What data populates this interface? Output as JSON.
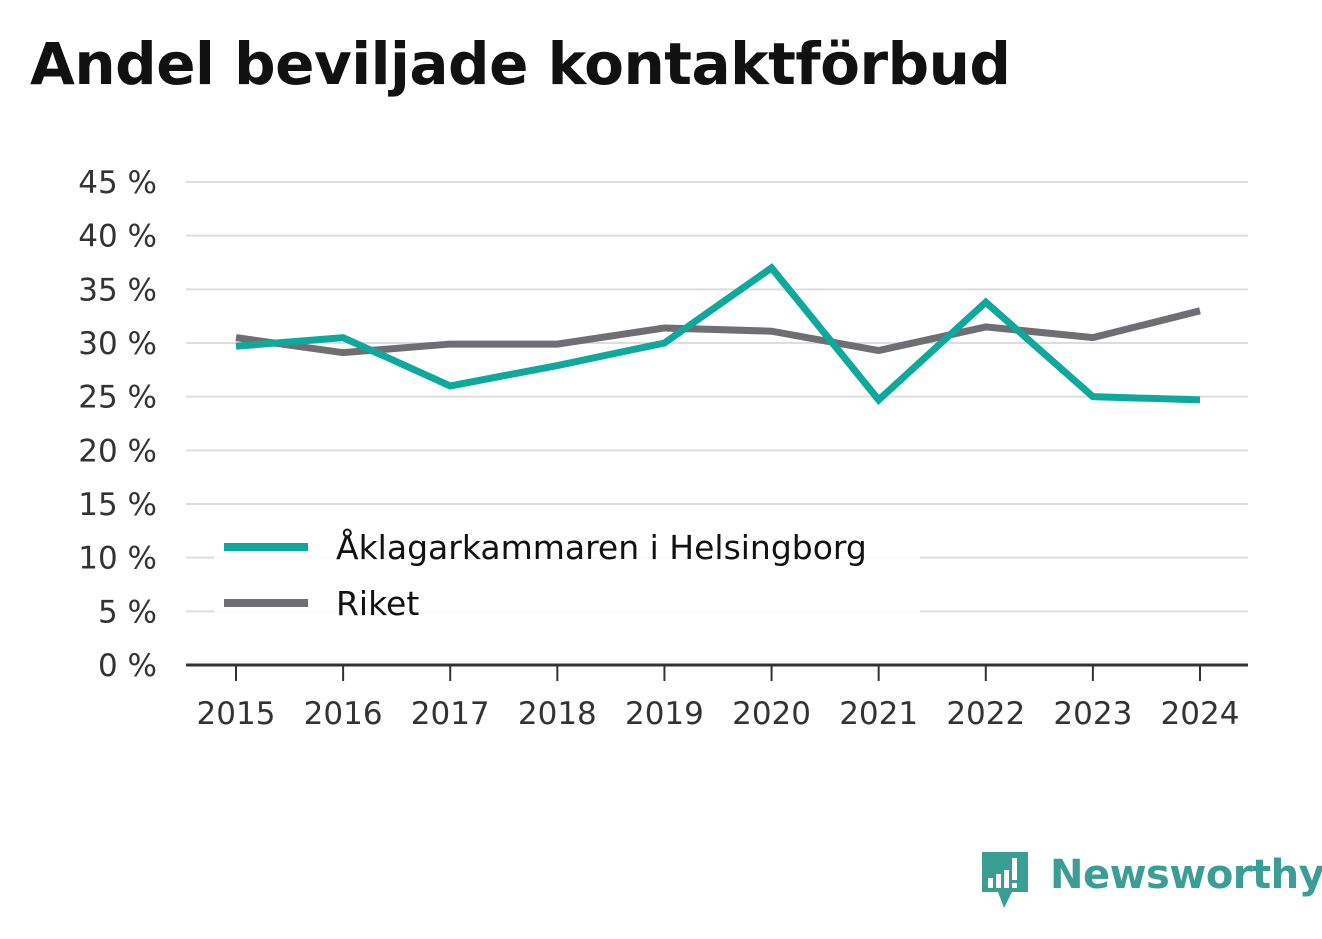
{
  "chart_data": {
    "type": "line",
    "title": "Andel beviljade kontaktförbud",
    "xlabel": "",
    "ylabel": "",
    "x": [
      "2015",
      "2016",
      "2017",
      "2018",
      "2019",
      "2020",
      "2021",
      "2022",
      "2023",
      "2024"
    ],
    "ylim": [
      0,
      45
    ],
    "yticks": [
      0,
      5,
      10,
      15,
      20,
      25,
      30,
      35,
      40,
      45
    ],
    "ytick_suffix": " %",
    "grid": true,
    "legend_position": "lower-left",
    "series": [
      {
        "name": "Åklagarkammaren i Helsingborg",
        "color": "#0fa89c",
        "values": [
          29.7,
          30.5,
          26.0,
          27.9,
          30.0,
          37.0,
          24.7,
          33.8,
          25.0,
          24.7
        ]
      },
      {
        "name": "Riket",
        "color": "#6e6e73",
        "values": [
          30.5,
          29.1,
          29.9,
          29.9,
          31.4,
          31.1,
          29.3,
          31.5,
          30.5,
          33.0
        ]
      }
    ]
  },
  "brand": {
    "name": "Newsworthy",
    "icon": "newsworthy-logo-icon",
    "color": "#3a9e95"
  }
}
